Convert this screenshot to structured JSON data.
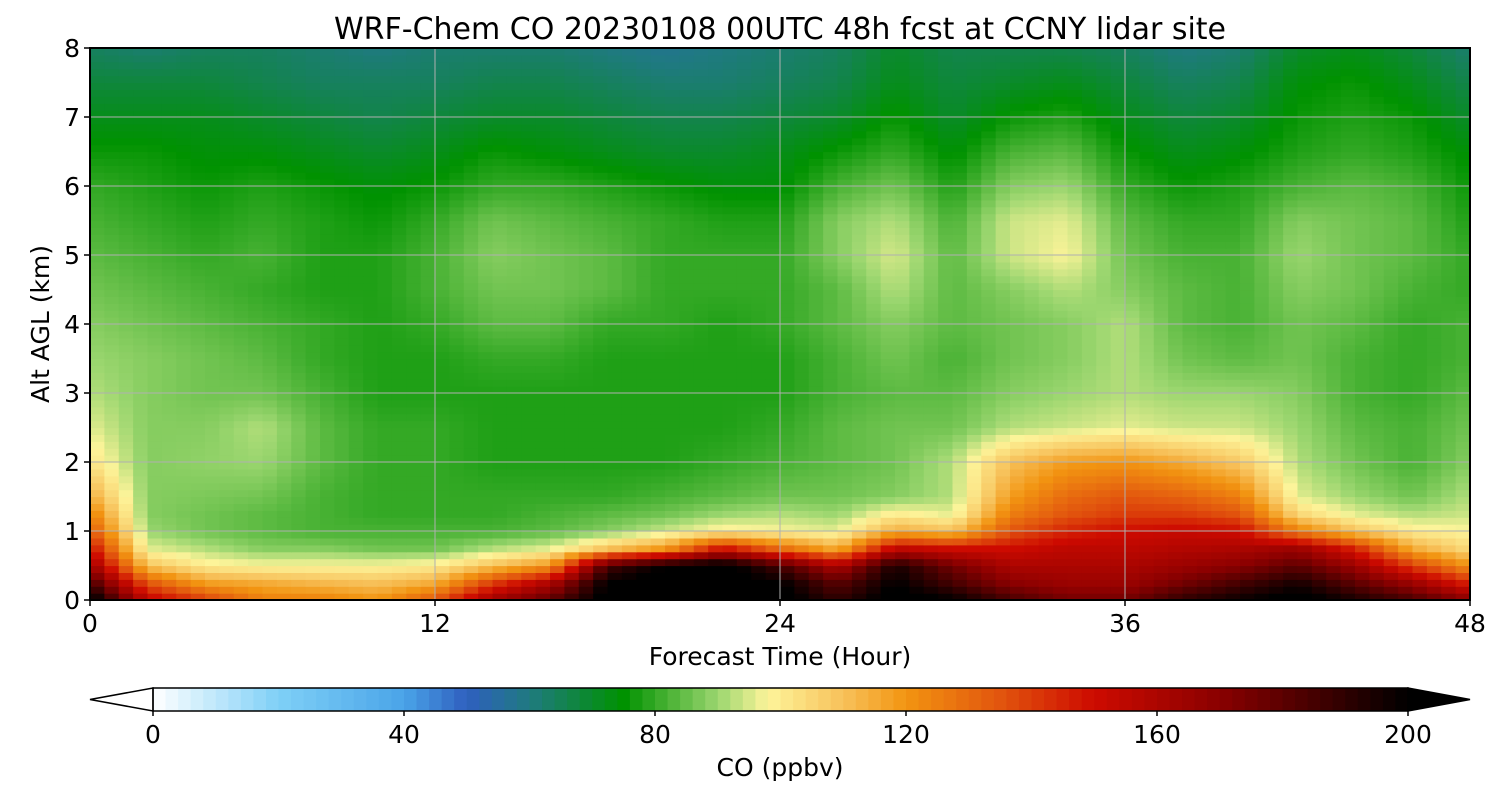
{
  "chart_data": {
    "type": "heatmap",
    "title": "WRF-Chem CO  20230108 00UTC 48h fcst at CCNY lidar site",
    "xlabel": "Forecast Time (Hour)",
    "ylabel": "Alt AGL (km)",
    "xlim": [
      0,
      48
    ],
    "ylim": [
      0,
      8
    ],
    "xticks": [
      "0",
      "12",
      "24",
      "36",
      "48"
    ],
    "yticks": [
      "0",
      "1",
      "2",
      "3",
      "4",
      "5",
      "6",
      "7",
      "8"
    ],
    "grid": true,
    "colorbar": {
      "label": "CO  (ppbv)",
      "range": [
        0,
        200
      ],
      "ticks": [
        "0",
        "40",
        "80",
        "120",
        "160",
        "200"
      ],
      "extend": "both",
      "stops": [
        {
          "v": 0,
          "c": "#ffffff"
        },
        {
          "v": 20,
          "c": "#7fd0f7"
        },
        {
          "v": 40,
          "c": "#4aa4e8"
        },
        {
          "v": 50,
          "c": "#2f5fbf"
        },
        {
          "v": 60,
          "c": "#1f7a80"
        },
        {
          "v": 75,
          "c": "#009200"
        },
        {
          "v": 90,
          "c": "#9bd66f"
        },
        {
          "v": 98,
          "c": "#fdf49a"
        },
        {
          "v": 110,
          "c": "#f7c15a"
        },
        {
          "v": 120,
          "c": "#f29411"
        },
        {
          "v": 135,
          "c": "#e2550e"
        },
        {
          "v": 150,
          "c": "#cd0a00"
        },
        {
          "v": 170,
          "c": "#8a0000"
        },
        {
          "v": 200,
          "c": "#000000"
        }
      ]
    },
    "z_grid": {
      "x_hours": [
        0,
        2,
        4,
        6,
        8,
        10,
        12,
        14,
        16,
        18,
        20,
        22,
        24,
        26,
        28,
        30,
        32,
        34,
        36,
        38,
        40,
        42,
        44,
        46,
        48
      ],
      "y_km": [
        0,
        0.25,
        0.5,
        0.75,
        1,
        1.25,
        1.5,
        2,
        2.5,
        3,
        3.5,
        4,
        4.5,
        5,
        5.5,
        6,
        6.5,
        7,
        7.5,
        8
      ],
      "values": [
        [
          205,
          155,
          140,
          125,
          125,
          120,
          135,
          165,
          180,
          205,
          205,
          205,
          205,
          190,
          205,
          200,
          185,
          175,
          175,
          190,
          198,
          205,
          195,
          185,
          170
        ],
        [
          185,
          135,
          118,
          115,
          112,
          110,
          115,
          140,
          160,
          200,
          205,
          205,
          200,
          180,
          200,
          185,
          170,
          165,
          165,
          175,
          185,
          195,
          180,
          165,
          145
        ],
        [
          165,
          110,
          100,
          98,
          98,
          98,
          100,
          110,
          120,
          185,
          200,
          205,
          185,
          160,
          195,
          175,
          160,
          160,
          160,
          165,
          170,
          180,
          165,
          140,
          120
        ],
        [
          150,
          96,
          92,
          88,
          88,
          86,
          86,
          92,
          96,
          110,
          120,
          150,
          130,
          115,
          155,
          150,
          150,
          155,
          155,
          158,
          160,
          165,
          145,
          115,
          104
        ],
        [
          135,
          90,
          86,
          84,
          82,
          82,
          82,
          82,
          84,
          88,
          94,
          100,
          98,
          96,
          115,
          110,
          135,
          145,
          150,
          152,
          150,
          125,
          110,
          100,
          98
        ],
        [
          125,
          88,
          86,
          84,
          82,
          80,
          80,
          80,
          82,
          84,
          86,
          90,
          92,
          90,
          100,
          96,
          125,
          135,
          140,
          140,
          135,
          105,
          96,
          92,
          94
        ],
        [
          115,
          88,
          87,
          86,
          82,
          80,
          80,
          80,
          80,
          80,
          82,
          84,
          86,
          86,
          88,
          92,
          118,
          130,
          135,
          132,
          125,
          96,
          90,
          86,
          92
        ],
        [
          102,
          88,
          89,
          90,
          84,
          80,
          80,
          78,
          78,
          78,
          78,
          80,
          82,
          84,
          86,
          92,
          110,
          118,
          120,
          115,
          108,
          92,
          86,
          82,
          88
        ],
        [
          96,
          88,
          88,
          92,
          84,
          80,
          80,
          78,
          78,
          78,
          78,
          78,
          80,
          84,
          86,
          86,
          92,
          94,
          96,
          94,
          94,
          90,
          84,
          82,
          86
        ],
        [
          92,
          88,
          86,
          86,
          82,
          78,
          78,
          78,
          78,
          78,
          78,
          78,
          78,
          82,
          84,
          84,
          88,
          90,
          92,
          90,
          90,
          88,
          82,
          80,
          84
        ],
        [
          90,
          88,
          86,
          84,
          80,
          78,
          78,
          80,
          80,
          78,
          78,
          78,
          78,
          82,
          86,
          82,
          86,
          88,
          92,
          86,
          84,
          86,
          82,
          80,
          82
        ],
        [
          88,
          86,
          84,
          82,
          80,
          78,
          80,
          84,
          84,
          80,
          80,
          78,
          80,
          84,
          88,
          84,
          86,
          88,
          92,
          84,
          82,
          86,
          84,
          80,
          82
        ],
        [
          86,
          84,
          82,
          80,
          78,
          78,
          82,
          86,
          86,
          84,
          80,
          80,
          80,
          84,
          92,
          84,
          88,
          92,
          88,
          84,
          82,
          88,
          86,
          82,
          80
        ],
        [
          84,
          82,
          80,
          82,
          78,
          78,
          82,
          88,
          86,
          84,
          80,
          80,
          80,
          88,
          95,
          84,
          94,
          98,
          86,
          82,
          82,
          90,
          86,
          84,
          80
        ],
        [
          82,
          80,
          78,
          80,
          78,
          76,
          80,
          86,
          84,
          82,
          80,
          78,
          78,
          88,
          92,
          82,
          94,
          96,
          84,
          80,
          80,
          88,
          86,
          84,
          78
        ],
        [
          80,
          78,
          76,
          78,
          76,
          74,
          76,
          80,
          80,
          78,
          76,
          74,
          74,
          82,
          86,
          78,
          88,
          90,
          80,
          76,
          78,
          82,
          84,
          82,
          76
        ],
        [
          76,
          76,
          74,
          74,
          72,
          70,
          72,
          76,
          74,
          72,
          70,
          70,
          72,
          76,
          80,
          74,
          82,
          84,
          76,
          72,
          74,
          78,
          80,
          78,
          74
        ],
        [
          72,
          72,
          72,
          70,
          68,
          66,
          68,
          70,
          70,
          68,
          66,
          66,
          68,
          70,
          76,
          70,
          76,
          78,
          72,
          68,
          70,
          76,
          78,
          76,
          70
        ],
        [
          68,
          68,
          68,
          66,
          64,
          64,
          64,
          66,
          66,
          64,
          62,
          62,
          64,
          66,
          72,
          68,
          70,
          72,
          68,
          64,
          66,
          74,
          76,
          72,
          66
        ],
        [
          64,
          62,
          64,
          64,
          62,
          60,
          62,
          62,
          62,
          60,
          58,
          60,
          62,
          64,
          70,
          66,
          66,
          66,
          64,
          60,
          62,
          70,
          72,
          68,
          62
        ]
      ]
    }
  }
}
